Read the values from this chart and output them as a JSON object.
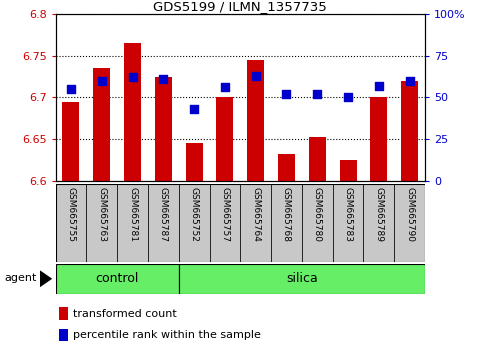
{
  "title": "GDS5199 / ILMN_1357735",
  "samples": [
    "GSM665755",
    "GSM665763",
    "GSM665781",
    "GSM665787",
    "GSM665752",
    "GSM665757",
    "GSM665764",
    "GSM665768",
    "GSM665780",
    "GSM665783",
    "GSM665789",
    "GSM665790"
  ],
  "bar_values": [
    6.695,
    6.735,
    6.765,
    6.725,
    6.645,
    6.7,
    6.745,
    6.632,
    6.652,
    6.625,
    6.7,
    6.72
  ],
  "percentile_values": [
    55,
    60,
    62,
    61,
    43,
    56,
    63,
    52,
    52,
    50,
    57,
    60
  ],
  "y_min": 6.6,
  "y_max": 6.8,
  "y_ticks": [
    6.6,
    6.65,
    6.7,
    6.75,
    6.8
  ],
  "y_tick_labels": [
    "6.6",
    "6.65",
    "6.7",
    "6.75",
    "6.8"
  ],
  "right_y_ticks": [
    0,
    25,
    50,
    75,
    100
  ],
  "right_y_labels": [
    "0",
    "25",
    "50",
    "75",
    "100%"
  ],
  "bar_color": "#cc0000",
  "dot_color": "#0000cc",
  "control_samples": 4,
  "silica_samples": 8,
  "control_label": "control",
  "silica_label": "silica",
  "agent_label": "agent",
  "group_color": "#66ee66",
  "legend_bar_label": "transformed count",
  "legend_dot_label": "percentile rank within the sample",
  "left_tick_color": "#cc0000",
  "right_tick_color": "#0000cc",
  "tick_label_bg": "#c8c8c8",
  "bar_width": 0.55,
  "dot_size": 28
}
